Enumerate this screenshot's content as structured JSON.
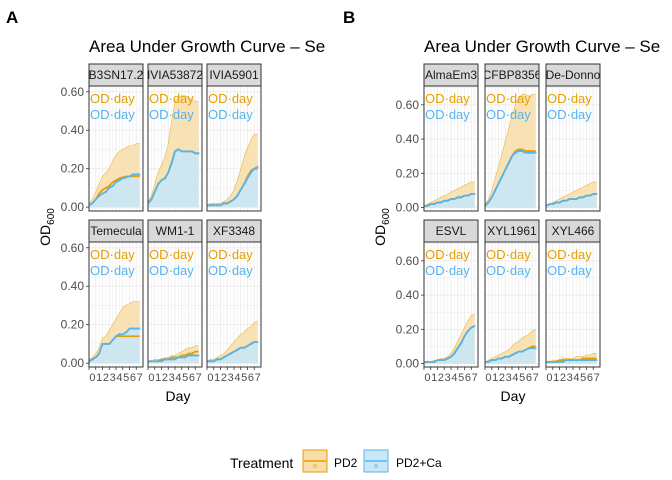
{
  "colors": {
    "pd2_line": "#E69F00",
    "pd2_fill": "#F8DDA8",
    "ca_line": "#56B4E9",
    "ca_fill": "#C9E7F6",
    "strip_bg": "#D9D9D9",
    "grid": "#EBEBEB"
  },
  "legend": {
    "title": "Treatment",
    "items": [
      {
        "label": "PD2",
        "color_key": "pd2"
      },
      {
        "label": "PD2+Ca",
        "color_key": "ca"
      }
    ]
  },
  "chart_data": [
    {
      "type": "area",
      "panel_label": "A",
      "title": "Area Under Growth Curve – Se",
      "xlabel": "Day",
      "ylabel": "OD",
      "ylabel_subscript": "600",
      "xlim": [
        0,
        8
      ],
      "x_ticks": [
        "0",
        "1",
        "2",
        "3",
        "4",
        "5",
        "6",
        "7"
      ],
      "ylim": [
        -0.02,
        0.63
      ],
      "y_ticks": [
        "0.00",
        "0.20",
        "0.40",
        "0.60"
      ],
      "y_tick_values": [
        0,
        0.2,
        0.4,
        0.6
      ],
      "grid": true,
      "facet_annotations": [
        "OD·day",
        "OD·day"
      ],
      "x": [
        0,
        0.5,
        1,
        1.5,
        2,
        2.5,
        3,
        3.5,
        4,
        4.5,
        5,
        5.5,
        6,
        6.5,
        7,
        7.5
      ],
      "facets": [
        {
          "name": "B3SN17.2",
          "series": [
            {
              "name": "PD2",
              "mean": [
                0.01,
                0.02,
                0.04,
                0.07,
                0.09,
                0.1,
                0.11,
                0.13,
                0.14,
                0.15,
                0.155,
                0.16,
                0.16,
                0.16,
                0.16,
                0.16
              ],
              "upper": [
                0.02,
                0.04,
                0.08,
                0.12,
                0.16,
                0.18,
                0.2,
                0.24,
                0.27,
                0.29,
                0.3,
                0.31,
                0.32,
                0.32,
                0.33,
                0.33
              ]
            },
            {
              "name": "PD2+Ca",
              "mean": [
                0.01,
                0.02,
                0.04,
                0.06,
                0.07,
                0.08,
                0.1,
                0.11,
                0.13,
                0.14,
                0.15,
                0.155,
                0.16,
                0.17,
                0.17,
                0.17
              ]
            }
          ]
        },
        {
          "name": "IVIA53872",
          "series": [
            {
              "name": "PD2",
              "mean": [
                0.02,
                0.04,
                0.08,
                0.12,
                0.14,
                0.15,
                0.18,
                0.23,
                0.29,
                0.3,
                0.29,
                0.29,
                0.29,
                0.29,
                0.28,
                0.28
              ],
              "upper": [
                0.03,
                0.06,
                0.12,
                0.18,
                0.22,
                0.26,
                0.33,
                0.45,
                0.55,
                0.57,
                0.58,
                0.58,
                0.57,
                0.56,
                0.55,
                0.55
              ]
            },
            {
              "name": "PD2+Ca",
              "mean": [
                0.02,
                0.04,
                0.08,
                0.12,
                0.14,
                0.15,
                0.18,
                0.23,
                0.29,
                0.3,
                0.29,
                0.29,
                0.29,
                0.29,
                0.28,
                0.28
              ]
            }
          ]
        },
        {
          "name": "IVIA5901",
          "series": [
            {
              "name": "PD2",
              "mean": [
                0.01,
                0.01,
                0.01,
                0.01,
                0.01,
                0.02,
                0.02,
                0.03,
                0.04,
                0.06,
                0.09,
                0.12,
                0.16,
                0.19,
                0.2,
                0.2
              ],
              "upper": [
                0.01,
                0.02,
                0.02,
                0.02,
                0.02,
                0.03,
                0.04,
                0.06,
                0.09,
                0.14,
                0.2,
                0.26,
                0.31,
                0.35,
                0.38,
                0.38
              ]
            },
            {
              "name": "PD2+Ca",
              "mean": [
                0.01,
                0.01,
                0.01,
                0.01,
                0.01,
                0.02,
                0.02,
                0.03,
                0.04,
                0.06,
                0.09,
                0.12,
                0.15,
                0.18,
                0.2,
                0.21
              ]
            }
          ]
        },
        {
          "name": "Temecula",
          "series": [
            {
              "name": "PD2",
              "mean": [
                0.01,
                0.02,
                0.03,
                0.05,
                0.1,
                0.1,
                0.1,
                0.12,
                0.14,
                0.14,
                0.14,
                0.14,
                0.14,
                0.14,
                0.14,
                0.14
              ],
              "upper": [
                0.02,
                0.03,
                0.05,
                0.08,
                0.13,
                0.14,
                0.17,
                0.2,
                0.23,
                0.26,
                0.29,
                0.3,
                0.31,
                0.32,
                0.32,
                0.32
              ]
            },
            {
              "name": "PD2+Ca",
              "mean": [
                0.01,
                0.02,
                0.03,
                0.05,
                0.1,
                0.1,
                0.1,
                0.12,
                0.14,
                0.15,
                0.15,
                0.16,
                0.18,
                0.18,
                0.18,
                0.18
              ]
            }
          ]
        },
        {
          "name": "WM1-1",
          "series": [
            {
              "name": "PD2",
              "mean": [
                0.01,
                0.01,
                0.01,
                0.01,
                0.02,
                0.02,
                0.02,
                0.03,
                0.03,
                0.03,
                0.04,
                0.04,
                0.05,
                0.05,
                0.06,
                0.06
              ],
              "upper": [
                0.01,
                0.01,
                0.02,
                0.02,
                0.02,
                0.03,
                0.03,
                0.04,
                0.04,
                0.05,
                0.06,
                0.07,
                0.08,
                0.08,
                0.09,
                0.09
              ]
            },
            {
              "name": "PD2+Ca",
              "mean": [
                0.01,
                0.01,
                0.01,
                0.01,
                0.01,
                0.02,
                0.02,
                0.02,
                0.02,
                0.03,
                0.03,
                0.03,
                0.04,
                0.04,
                0.04,
                0.04
              ]
            }
          ]
        },
        {
          "name": "XF3348",
          "series": [
            {
              "name": "PD2",
              "mean": [
                0.01,
                0.01,
                0.01,
                0.02,
                0.02,
                0.03,
                0.04,
                0.05,
                0.06,
                0.07,
                0.08,
                0.08,
                0.09,
                0.1,
                0.11,
                0.11
              ],
              "upper": [
                0.01,
                0.02,
                0.02,
                0.03,
                0.04,
                0.05,
                0.07,
                0.09,
                0.11,
                0.13,
                0.15,
                0.16,
                0.18,
                0.19,
                0.21,
                0.22
              ]
            },
            {
              "name": "PD2+Ca",
              "mean": [
                0.01,
                0.01,
                0.01,
                0.02,
                0.02,
                0.03,
                0.04,
                0.05,
                0.06,
                0.07,
                0.08,
                0.08,
                0.09,
                0.1,
                0.11,
                0.11
              ]
            }
          ]
        }
      ]
    },
    {
      "type": "area",
      "panel_label": "B",
      "title": "Area Under Growth Curve – Se",
      "xlabel": "Day",
      "ylabel": "OD",
      "ylabel_subscript": "600",
      "xlim": [
        0,
        8
      ],
      "x_ticks": [
        "0",
        "1",
        "2",
        "3",
        "4",
        "5",
        "6",
        "7"
      ],
      "ylim": [
        -0.02,
        0.71
      ],
      "y_ticks": [
        "0.00",
        "0.20",
        "0.40",
        "0.60"
      ],
      "y_tick_values": [
        0,
        0.2,
        0.4,
        0.6
      ],
      "grid": true,
      "facet_annotations": [
        "OD·day",
        "OD·day"
      ],
      "x": [
        0,
        0.5,
        1,
        1.5,
        2,
        2.5,
        3,
        3.5,
        4,
        4.5,
        5,
        5.5,
        6,
        6.5,
        7,
        7.5
      ],
      "facets": [
        {
          "name": "AlmaEm3",
          "series": [
            {
              "name": "PD2",
              "mean": [
                0.01,
                0.01,
                0.02,
                0.02,
                0.03,
                0.03,
                0.04,
                0.04,
                0.05,
                0.05,
                0.06,
                0.06,
                0.07,
                0.07,
                0.08,
                0.08
              ],
              "upper": [
                0.01,
                0.02,
                0.03,
                0.04,
                0.05,
                0.06,
                0.07,
                0.08,
                0.09,
                0.1,
                0.11,
                0.12,
                0.13,
                0.14,
                0.15,
                0.15
              ]
            },
            {
              "name": "PD2+Ca",
              "mean": [
                0.01,
                0.01,
                0.02,
                0.02,
                0.03,
                0.03,
                0.04,
                0.04,
                0.05,
                0.05,
                0.06,
                0.06,
                0.07,
                0.07,
                0.08,
                0.08
              ]
            }
          ]
        },
        {
          "name": "CFBP8356",
          "series": [
            {
              "name": "PD2",
              "mean": [
                0.01,
                0.03,
                0.06,
                0.1,
                0.14,
                0.18,
                0.22,
                0.26,
                0.3,
                0.33,
                0.34,
                0.34,
                0.33,
                0.33,
                0.33,
                0.33
              ],
              "upper": [
                0.02,
                0.05,
                0.1,
                0.17,
                0.24,
                0.31,
                0.39,
                0.46,
                0.54,
                0.6,
                0.64,
                0.66,
                0.66,
                0.65,
                0.66,
                0.66
              ]
            },
            {
              "name": "PD2+Ca",
              "mean": [
                0.01,
                0.03,
                0.06,
                0.1,
                0.14,
                0.18,
                0.22,
                0.26,
                0.3,
                0.32,
                0.33,
                0.33,
                0.32,
                0.32,
                0.32,
                0.32
              ]
            }
          ]
        },
        {
          "name": "De-Donno",
          "series": [
            {
              "name": "PD2",
              "mean": [
                0.01,
                0.02,
                0.02,
                0.03,
                0.03,
                0.04,
                0.04,
                0.05,
                0.05,
                0.05,
                0.06,
                0.06,
                0.07,
                0.07,
                0.08,
                0.08
              ],
              "upper": [
                0.01,
                0.02,
                0.03,
                0.04,
                0.05,
                0.06,
                0.07,
                0.08,
                0.09,
                0.1,
                0.11,
                0.12,
                0.13,
                0.14,
                0.15,
                0.15
              ]
            },
            {
              "name": "PD2+Ca",
              "mean": [
                0.01,
                0.02,
                0.02,
                0.03,
                0.03,
                0.04,
                0.04,
                0.05,
                0.05,
                0.05,
                0.06,
                0.06,
                0.07,
                0.07,
                0.08,
                0.08
              ]
            }
          ]
        },
        {
          "name": "ESVL",
          "series": [
            {
              "name": "PD2",
              "mean": [
                0.01,
                0.01,
                0.01,
                0.01,
                0.02,
                0.02,
                0.02,
                0.03,
                0.04,
                0.06,
                0.09,
                0.12,
                0.16,
                0.19,
                0.21,
                0.22
              ],
              "upper": [
                0.01,
                0.01,
                0.01,
                0.02,
                0.02,
                0.03,
                0.03,
                0.04,
                0.06,
                0.09,
                0.13,
                0.17,
                0.21,
                0.25,
                0.28,
                0.29
              ]
            },
            {
              "name": "PD2+Ca",
              "mean": [
                0.01,
                0.01,
                0.01,
                0.01,
                0.02,
                0.02,
                0.02,
                0.03,
                0.04,
                0.06,
                0.09,
                0.12,
                0.16,
                0.19,
                0.21,
                0.22
              ]
            }
          ]
        },
        {
          "name": "XYL1961",
          "series": [
            {
              "name": "PD2",
              "mean": [
                0.01,
                0.01,
                0.02,
                0.02,
                0.03,
                0.03,
                0.04,
                0.04,
                0.05,
                0.06,
                0.07,
                0.07,
                0.08,
                0.09,
                0.1,
                0.1
              ],
              "upper": [
                0.01,
                0.02,
                0.03,
                0.04,
                0.05,
                0.06,
                0.07,
                0.08,
                0.1,
                0.12,
                0.13,
                0.15,
                0.16,
                0.17,
                0.19,
                0.2
              ]
            },
            {
              "name": "PD2+Ca",
              "mean": [
                0.01,
                0.01,
                0.02,
                0.02,
                0.03,
                0.03,
                0.04,
                0.04,
                0.05,
                0.06,
                0.07,
                0.07,
                0.08,
                0.09,
                0.09,
                0.09
              ]
            }
          ]
        },
        {
          "name": "XYL466",
          "series": [
            {
              "name": "PD2",
              "mean": [
                0.01,
                0.01,
                0.01,
                0.01,
                0.02,
                0.02,
                0.02,
                0.02,
                0.02,
                0.02,
                0.02,
                0.03,
                0.03,
                0.03,
                0.03,
                0.03
              ],
              "upper": [
                0.01,
                0.01,
                0.02,
                0.02,
                0.02,
                0.03,
                0.03,
                0.03,
                0.03,
                0.04,
                0.04,
                0.04,
                0.05,
                0.05,
                0.06,
                0.06
              ]
            },
            {
              "name": "PD2+Ca",
              "mean": [
                0.01,
                0.01,
                0.01,
                0.01,
                0.01,
                0.01,
                0.02,
                0.02,
                0.02,
                0.02,
                0.02,
                0.02,
                0.02,
                0.02,
                0.02,
                0.02
              ]
            }
          ]
        }
      ]
    }
  ]
}
